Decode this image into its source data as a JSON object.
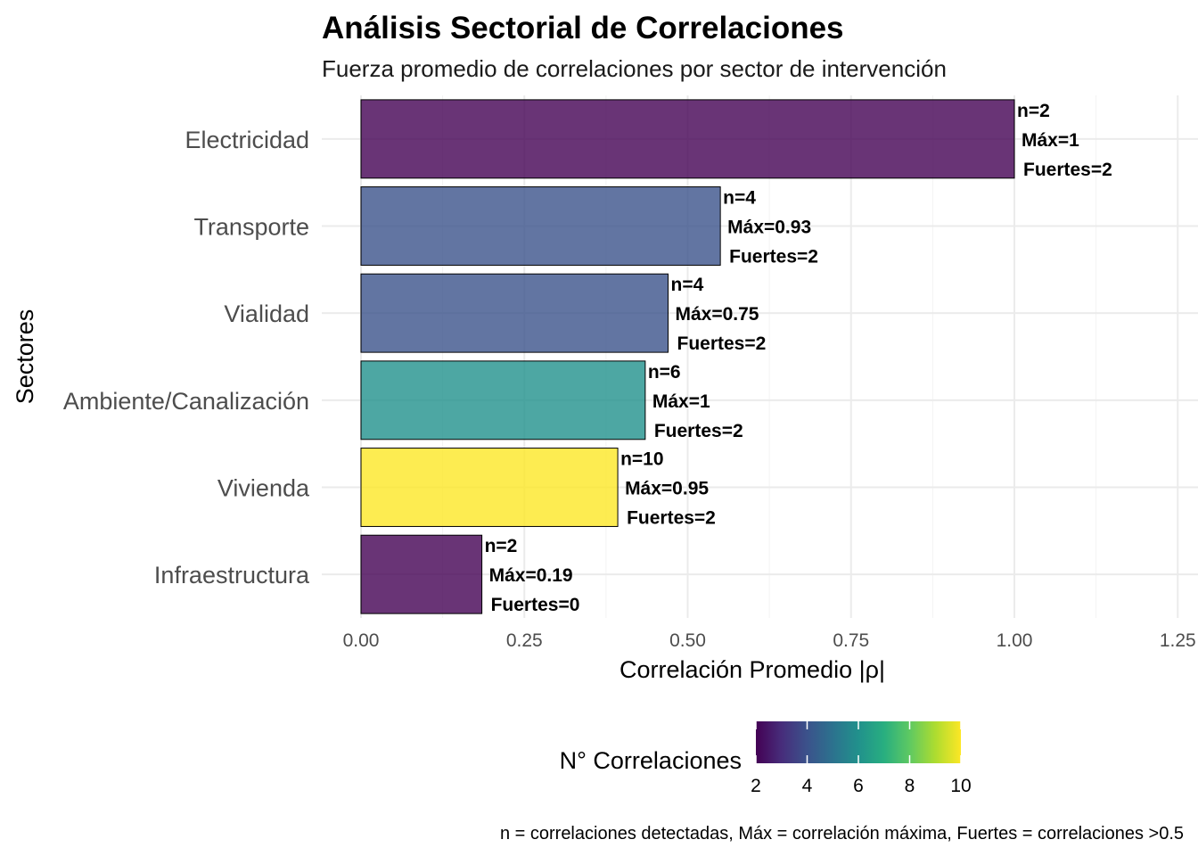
{
  "colors": {
    "scale": [
      "#440154",
      "#472d7b",
      "#3b528b",
      "#2c728e",
      "#21918c",
      "#28ae80",
      "#5ec962",
      "#addc30",
      "#fde725"
    ],
    "background": "#ffffff",
    "bar_outline": "#000000"
  },
  "chart_data": {
    "type": "bar",
    "orientation": "horizontal",
    "title": "Análisis Sectorial de Correlaciones",
    "subtitle": "Fuerza promedio de correlaciones por sector de intervención",
    "xlabel": "Correlación Promedio |ρ|",
    "ylabel": "Sectores",
    "xlim": [
      0,
      1.25
    ],
    "x_ticks": [
      0.0,
      0.25,
      0.5,
      0.75,
      1.0,
      1.25
    ],
    "x_tick_labels": [
      "0.00",
      "0.25",
      "0.50",
      "0.75",
      "1.00",
      "1.25"
    ],
    "grid": true,
    "categories": [
      "Electricidad",
      "Transporte",
      "Vialidad",
      "Ambiente/Canalización",
      "Vivienda",
      "Infraestructura"
    ],
    "values": [
      1.0,
      0.55,
      0.47,
      0.435,
      0.393,
      0.185
    ],
    "fill_values": [
      2,
      4,
      4,
      6,
      10,
      2
    ],
    "labels": [
      [
        "n=2",
        "Máx=1",
        "Fuertes=2"
      ],
      [
        "n=4",
        "Máx=0.93",
        "Fuertes=2"
      ],
      [
        "n=4",
        "Máx=0.75",
        "Fuertes=2"
      ],
      [
        "n=6",
        "Máx=1",
        "Fuertes=2"
      ],
      [
        "n=10",
        "Máx=0.95",
        "Fuertes=2"
      ],
      [
        "n=2",
        "Máx=0.19",
        "Fuertes=0"
      ]
    ],
    "legend": {
      "title": "N° Correlaciones",
      "placement": "bottom",
      "min": 2,
      "max": 10,
      "ticks": [
        2,
        4,
        6,
        8,
        10
      ]
    },
    "caption": "n = correlaciones detectadas, Máx = correlación máxima, Fuertes = correlaciones >0.5"
  }
}
